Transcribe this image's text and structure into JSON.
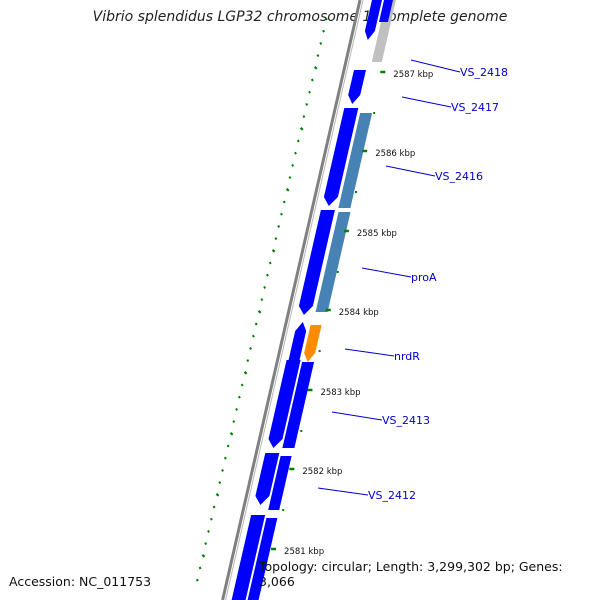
{
  "title": "Vibrio splendidus LGP32 chromosome 1, complete genome",
  "accession": "Accession: NC_011753",
  "summary": "Topology: circular; Length: 3,299,302 bp; Genes: 3,066",
  "colors": {
    "gene_blue": "#0000ff",
    "gene_steel": "#4682b4",
    "gene_orange": "#ff8c00",
    "gene_gray": "#c0c0c0",
    "backbone": "#808080",
    "tick_green": "#008000",
    "label_blue": "#0000cc"
  },
  "ruler": [
    {
      "label": "2587 kbp"
    },
    {
      "label": "2586 kbp"
    },
    {
      "label": "2585 kbp"
    },
    {
      "label": "2584 kbp"
    },
    {
      "label": "2583 kbp"
    },
    {
      "label": "2582 kbp"
    },
    {
      "label": "2581 kbp"
    }
  ],
  "gene_labels": [
    {
      "name": "VS_2418"
    },
    {
      "name": "VS_2417"
    },
    {
      "name": "VS_2416"
    },
    {
      "name": "proA"
    },
    {
      "name": "nrdR"
    },
    {
      "name": "VS_2413"
    },
    {
      "name": "VS_2412"
    }
  ]
}
